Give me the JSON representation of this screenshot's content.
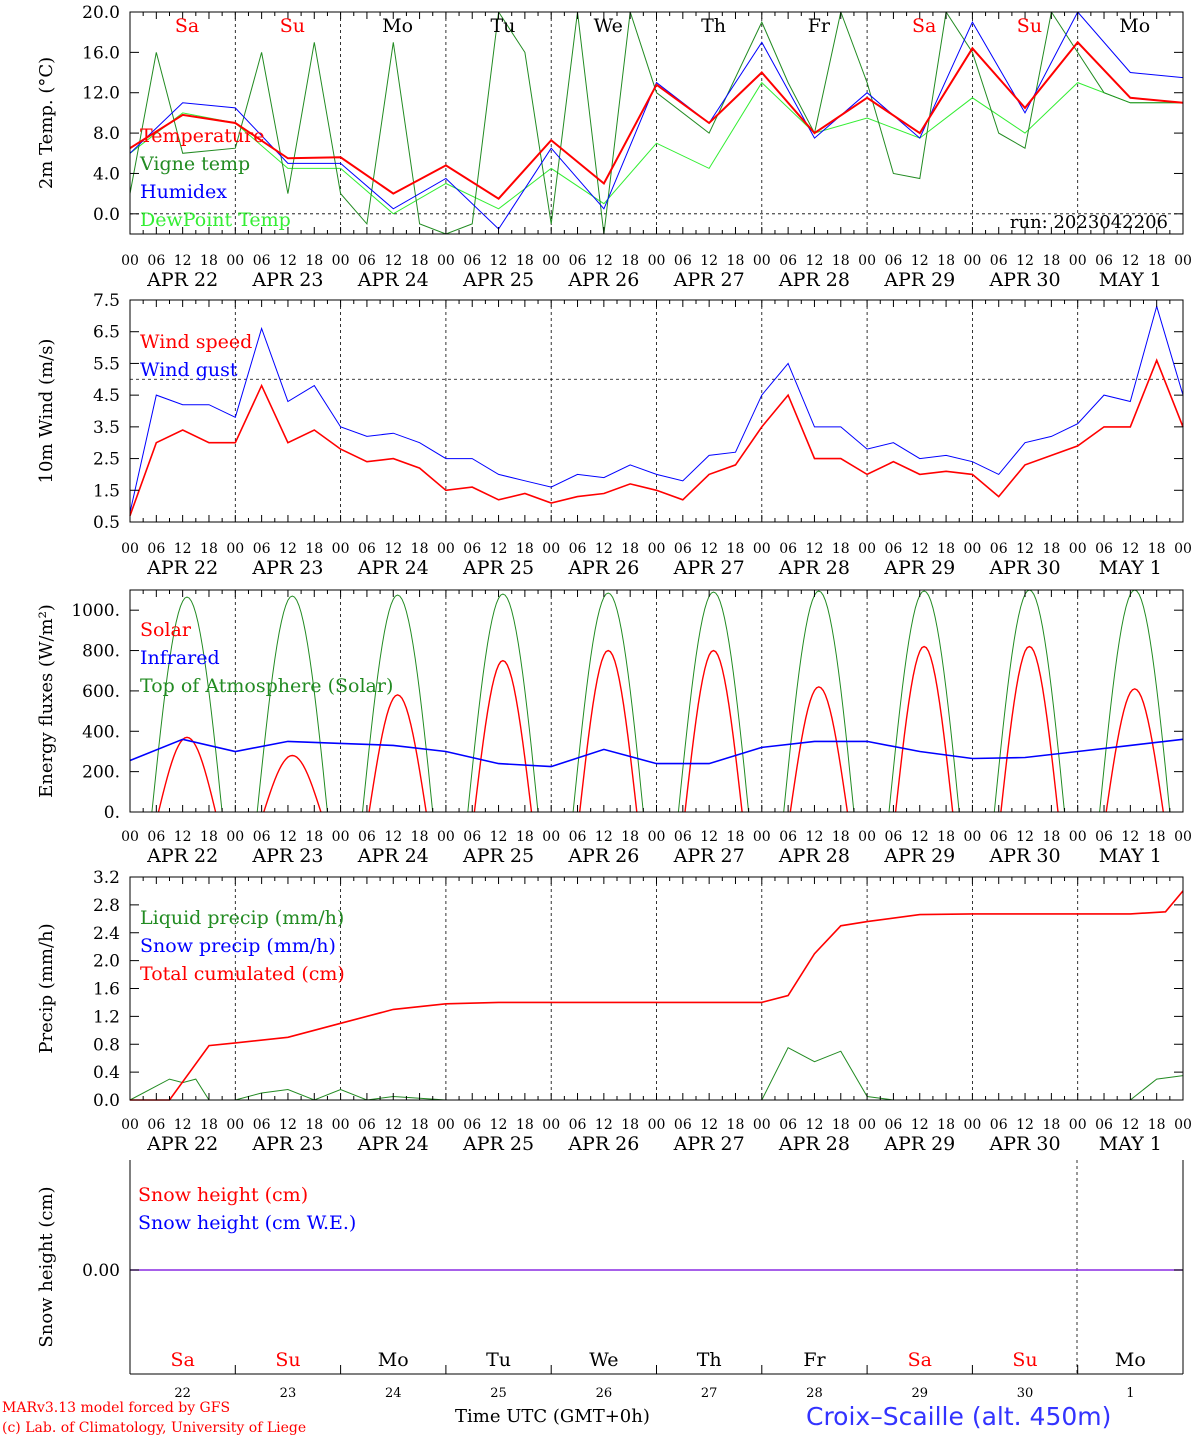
{
  "chart_data": [
    {
      "panel": "temperature",
      "type": "line",
      "ylabel": "2m Temp. (°C)",
      "ylim": [
        -2,
        20
      ],
      "ytick_labels": [
        "20.0",
        "16.0",
        "12.0",
        "8.0",
        "4.0",
        "0.0"
      ],
      "ytick_values": [
        20,
        16,
        12,
        8,
        4,
        0
      ],
      "reference_line": 0,
      "x_unit": "hours since APR 22 00 UTC",
      "annotation": "run: 2023042206",
      "series": [
        {
          "name": "Temperature",
          "color": "#ff0000",
          "x": [
            0,
            12,
            24,
            36,
            48,
            60,
            72,
            84,
            96,
            108,
            120,
            132,
            144,
            156,
            168,
            180,
            192,
            204,
            216,
            228,
            240
          ],
          "y": [
            6.5,
            9.8,
            9.0,
            5.5,
            5.6,
            2.0,
            4.8,
            1.5,
            7.3,
            3.0,
            12.8,
            9.0,
            14.0,
            8.0,
            11.5,
            8.0,
            16.4,
            10.5,
            17.0,
            11.5,
            11.0
          ]
        },
        {
          "name": "Vigne temp",
          "color": "#228b22",
          "x": [
            0,
            6,
            12,
            24,
            30,
            36,
            42,
            48,
            54,
            60,
            66,
            72,
            78,
            84,
            90,
            96,
            102,
            108,
            114,
            120,
            132,
            144,
            150,
            156,
            162,
            168,
            174,
            180,
            186,
            192,
            198,
            204,
            210,
            216,
            222,
            228,
            240
          ],
          "y": [
            2.0,
            16.0,
            6.0,
            6.5,
            16.0,
            2.0,
            17.0,
            2.0,
            -1.0,
            17.0,
            -1.0,
            -2.0,
            -1.0,
            20.0,
            16.0,
            -1.0,
            20.0,
            -2.0,
            20.0,
            12.0,
            8.0,
            19.0,
            13.0,
            8.0,
            20.0,
            13.0,
            4.0,
            3.5,
            20.0,
            16.0,
            8.0,
            6.5,
            20.0,
            16.0,
            12.0,
            11.0,
            11.0
          ]
        },
        {
          "name": "Humidex",
          "color": "#0000ff",
          "x": [
            0,
            12,
            24,
            36,
            48,
            60,
            72,
            84,
            96,
            108,
            120,
            132,
            144,
            156,
            168,
            180,
            192,
            204,
            216,
            228,
            240
          ],
          "y": [
            6.0,
            11.0,
            10.5,
            5.0,
            5.0,
            0.5,
            3.5,
            -1.5,
            6.5,
            0.5,
            13.0,
            9.0,
            17.0,
            7.5,
            12.0,
            7.5,
            19.0,
            10.0,
            20.0,
            14.0,
            13.5
          ]
        },
        {
          "name": "DewPoint Temp",
          "color": "#33ee33",
          "x": [
            0,
            12,
            24,
            36,
            48,
            60,
            72,
            84,
            96,
            108,
            120,
            132,
            144,
            156,
            168,
            180,
            192,
            204,
            216,
            228,
            240
          ],
          "y": [
            6.0,
            10.0,
            9.0,
            4.5,
            4.5,
            0.0,
            3.0,
            0.5,
            4.5,
            1.0,
            7.0,
            4.5,
            13.0,
            8.0,
            9.5,
            7.5,
            11.5,
            8.0,
            13.0,
            11.0,
            11.0
          ]
        }
      ]
    },
    {
      "panel": "wind",
      "type": "line",
      "ylabel": "10m Wind (m/s)",
      "ylim": [
        0.5,
        7.5
      ],
      "ytick_labels": [
        "7.5",
        "6.5",
        "5.5",
        "4.5",
        "3.5",
        "2.5",
        "1.5",
        "0.5"
      ],
      "ytick_values": [
        7.5,
        6.5,
        5.5,
        4.5,
        3.5,
        2.5,
        1.5,
        0.5
      ],
      "reference_line": 5.0,
      "x_unit": "hours since APR 22 00 UTC",
      "series": [
        {
          "name": "Wind speed",
          "color": "#ff0000",
          "x": [
            0,
            6,
            12,
            18,
            24,
            30,
            36,
            42,
            48,
            54,
            60,
            66,
            72,
            78,
            84,
            90,
            96,
            102,
            108,
            114,
            120,
            126,
            132,
            138,
            144,
            150,
            156,
            162,
            168,
            174,
            180,
            186,
            192,
            198,
            204,
            210,
            216,
            222,
            228,
            234,
            240
          ],
          "y": [
            0.7,
            3.0,
            3.4,
            3.0,
            3.0,
            4.8,
            3.0,
            3.4,
            2.8,
            2.4,
            2.5,
            2.2,
            1.5,
            1.6,
            1.2,
            1.4,
            1.1,
            1.3,
            1.4,
            1.7,
            1.5,
            1.2,
            2.0,
            2.3,
            3.5,
            4.5,
            2.5,
            2.5,
            2.0,
            2.4,
            2.0,
            2.1,
            2.0,
            1.3,
            2.3,
            2.6,
            2.9,
            3.5,
            3.5,
            5.6,
            3.5
          ]
        },
        {
          "name": "Wind gust",
          "color": "#0000ff",
          "x": [
            0,
            6,
            12,
            18,
            24,
            30,
            36,
            42,
            48,
            54,
            60,
            66,
            72,
            78,
            84,
            90,
            96,
            102,
            108,
            114,
            120,
            126,
            132,
            138,
            144,
            150,
            156,
            162,
            168,
            174,
            180,
            186,
            192,
            198,
            204,
            210,
            216,
            222,
            228,
            234,
            240
          ],
          "y": [
            0.8,
            4.5,
            4.2,
            4.2,
            3.8,
            6.6,
            4.3,
            4.8,
            3.5,
            3.2,
            3.3,
            3.0,
            2.5,
            2.5,
            2.0,
            1.8,
            1.6,
            2.0,
            1.9,
            2.3,
            2.0,
            1.8,
            2.6,
            2.7,
            4.5,
            5.5,
            3.5,
            3.5,
            2.8,
            3.0,
            2.5,
            2.6,
            2.4,
            2.0,
            3.0,
            3.2,
            3.6,
            4.5,
            4.3,
            7.3,
            4.5
          ]
        }
      ]
    },
    {
      "panel": "energy",
      "type": "line",
      "ylabel": "Energy fluxes (W/m²)",
      "ylim": [
        0,
        1100
      ],
      "ytick_labels": [
        "1000.",
        "800.",
        "600.",
        "400.",
        "200.",
        "0."
      ],
      "ytick_values": [
        1000,
        800,
        600,
        400,
        200,
        0
      ],
      "x_unit": "hours since APR 22 00 UTC",
      "series": [
        {
          "name": "Solar",
          "color": "#ff0000",
          "daily_peak_hour": 13,
          "daily_peak": [
            370,
            280,
            580,
            750,
            800,
            800,
            620,
            820,
            820,
            610
          ]
        },
        {
          "name": "Infrared",
          "color": "#0000ff",
          "x": [
            0,
            12,
            24,
            36,
            48,
            60,
            72,
            84,
            96,
            108,
            120,
            132,
            144,
            156,
            168,
            180,
            192,
            204,
            216,
            228,
            240
          ],
          "y": [
            255,
            360,
            300,
            350,
            340,
            330,
            300,
            240,
            225,
            310,
            240,
            240,
            320,
            350,
            350,
            300,
            265,
            270,
            300,
            330,
            360
          ]
        },
        {
          "name": "Top of Atmosphere (Solar)",
          "color": "#228b22",
          "daily_peak_hour": 13,
          "daily_peak": [
            1065,
            1070,
            1075,
            1080,
            1085,
            1090,
            1095,
            1095,
            1100,
            1100
          ]
        }
      ]
    },
    {
      "panel": "precip",
      "type": "line",
      "ylabel": "Precip (mm/h)",
      "ylim": [
        0,
        3.2
      ],
      "ytick_labels": [
        "3.2",
        "2.8",
        "2.4",
        "2.0",
        "1.6",
        "1.2",
        "0.8",
        "0.4",
        "0.0"
      ],
      "ytick_values": [
        3.2,
        2.8,
        2.4,
        2.0,
        1.6,
        1.2,
        0.8,
        0.4,
        0.0
      ],
      "x_unit": "hours since APR 22 00 UTC",
      "series": [
        {
          "name": "Liquid precip (mm/h)",
          "color": "#228b22",
          "x": [
            0,
            9,
            12,
            15,
            18,
            24,
            30,
            36,
            42,
            48,
            54,
            60,
            72,
            84,
            96,
            108,
            144,
            150,
            156,
            162,
            168,
            174,
            180,
            204,
            228,
            234,
            240
          ],
          "y": [
            0,
            0.3,
            0.25,
            0.3,
            0,
            0,
            0.1,
            0.15,
            0,
            0.15,
            0,
            0.05,
            0,
            0,
            0,
            0,
            0,
            0.75,
            0.55,
            0.7,
            0.05,
            0,
            0,
            0,
            0,
            0.3,
            0.35
          ]
        },
        {
          "name": "Snow precip (mm/h)",
          "color": "#0000ff",
          "x": [
            0,
            240
          ],
          "y": [
            0,
            0
          ]
        },
        {
          "name": "Total cumulated (cm)",
          "color": "#ff0000",
          "x": [
            0,
            9,
            18,
            24,
            36,
            48,
            60,
            72,
            84,
            96,
            120,
            144,
            150,
            156,
            162,
            168,
            180,
            192,
            204,
            216,
            228,
            236,
            240
          ],
          "y": [
            0,
            0,
            0.78,
            0.82,
            0.9,
            1.1,
            1.3,
            1.38,
            1.4,
            1.4,
            1.4,
            1.4,
            1.5,
            2.1,
            2.5,
            2.56,
            2.66,
            2.67,
            2.67,
            2.67,
            2.67,
            2.7,
            3.0
          ]
        }
      ]
    },
    {
      "panel": "snow",
      "type": "line",
      "ylabel": "Snow height (cm)",
      "ytick_labels": [
        "0.00"
      ],
      "ytick_values": [
        0
      ],
      "x_unit": "hours since APR 22 00 UTC",
      "series": [
        {
          "name": "Snow height (cm)",
          "color": "#ff0000",
          "x": [
            0,
            240
          ],
          "y": [
            0,
            0
          ]
        },
        {
          "name": "Snow height (cm W.E.)",
          "color": "#0000ff",
          "x": [
            0,
            240
          ],
          "y": [
            0,
            0
          ]
        }
      ]
    }
  ],
  "x_axis": {
    "hour_labels": [
      "00",
      "06",
      "12",
      "18"
    ],
    "end_label": "00",
    "day_labels": [
      "APR 22",
      "APR 23",
      "APR 24",
      "APR 25",
      "APR 26",
      "APR 27",
      "APR 28",
      "APR 29",
      "APR 30",
      "MAY  1"
    ],
    "weekdays": [
      "Sa",
      "Su",
      "Mo",
      "Tu",
      "We",
      "Th",
      "Fr",
      "Sa",
      "Su",
      "Mo"
    ],
    "weekday_colors": [
      "#ff0000",
      "#ff0000",
      "#000000",
      "#000000",
      "#000000",
      "#000000",
      "#000000",
      "#ff0000",
      "#ff0000",
      "#000000"
    ],
    "day_numbers": [
      "22",
      "23",
      "24",
      "25",
      "26",
      "27",
      "28",
      "29",
      "30",
      "1"
    ]
  },
  "footer": {
    "credit_line1": "MARv3.13 model forced by GFS",
    "credit_line2": "(c) Lab. of Climatology, University of Liege",
    "xtitle": "Time UTC (GMT+0h)",
    "station": "Croix–Scaille (alt. 450m)"
  }
}
